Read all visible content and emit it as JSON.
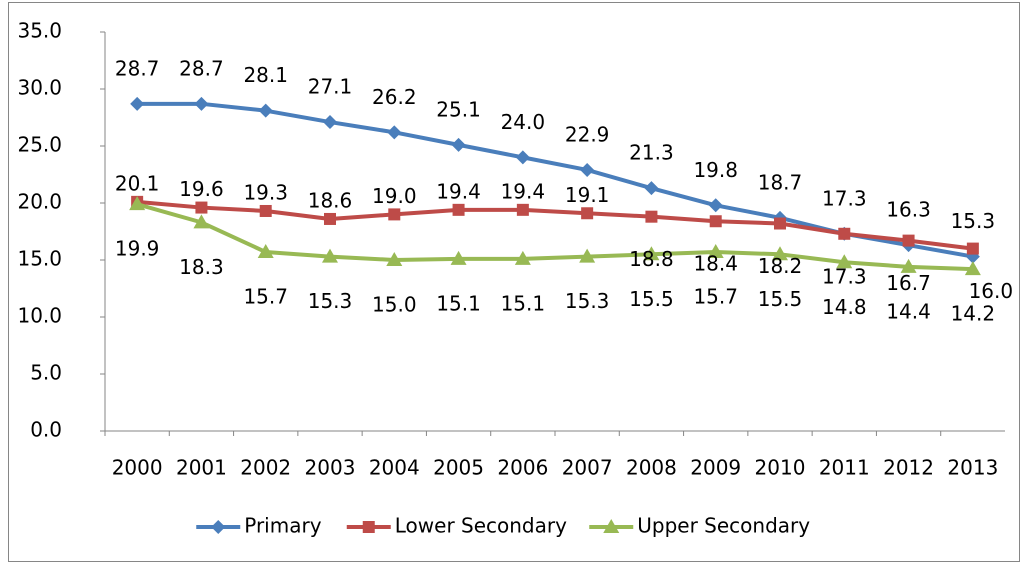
{
  "chart_data": {
    "type": "line",
    "categories": [
      "2000",
      "2001",
      "2002",
      "2003",
      "2004",
      "2005",
      "2006",
      "2007",
      "2008",
      "2009",
      "2010",
      "2011",
      "2012",
      "2013"
    ],
    "series": [
      {
        "name": "Primary",
        "color": "#4a7ebb",
        "marker": "diamond",
        "values": [
          28.7,
          28.7,
          28.1,
          27.1,
          26.2,
          25.1,
          24.0,
          22.9,
          21.3,
          19.8,
          18.7,
          17.3,
          16.3,
          15.3
        ],
        "value_labels": [
          "28.7",
          "28.7",
          "28.1",
          "27.1",
          "26.2",
          "25.1",
          "24.0",
          "22.9",
          "21.3",
          "19.8",
          "18.7",
          "17.3",
          "16.3",
          "15.3"
        ]
      },
      {
        "name": "Lower Secondary",
        "color": "#be4b48",
        "marker": "square",
        "values": [
          20.1,
          19.6,
          19.3,
          18.6,
          19.0,
          19.4,
          19.4,
          19.1,
          18.8,
          18.4,
          18.2,
          17.3,
          16.7,
          16.0
        ],
        "value_labels": [
          "20.1",
          "19.6",
          "19.3",
          "18.6",
          "19.0",
          "19.4",
          "19.4",
          "19.1",
          "18.8",
          "18.4",
          "18.2",
          "17.3",
          "16.7",
          "16.0"
        ]
      },
      {
        "name": "Upper Secondary",
        "color": "#98b954",
        "marker": "triangle",
        "values": [
          19.9,
          18.3,
          15.7,
          15.3,
          15.0,
          15.1,
          15.1,
          15.3,
          15.5,
          15.7,
          15.5,
          14.8,
          14.4,
          14.2
        ],
        "value_labels": [
          "19.9",
          "18.3",
          "15.7",
          "15.3",
          "15.0",
          "15.1",
          "15.1",
          "15.3",
          "15.5",
          "15.7",
          "15.5",
          "14.8",
          "14.4",
          "14.2"
        ]
      }
    ],
    "ylim": [
      0,
      35
    ],
    "yticks": [
      {
        "value": 0,
        "label": "0.0"
      },
      {
        "value": 5,
        "label": "5.0"
      },
      {
        "value": 10,
        "label": "10.0"
      },
      {
        "value": 15,
        "label": "15.0"
      },
      {
        "value": 20,
        "label": "20.0"
      },
      {
        "value": 25,
        "label": "25.0"
      },
      {
        "value": 30,
        "label": "30.0"
      },
      {
        "value": 35,
        "label": "35.0"
      }
    ],
    "grid": false,
    "legend": "bottom"
  }
}
